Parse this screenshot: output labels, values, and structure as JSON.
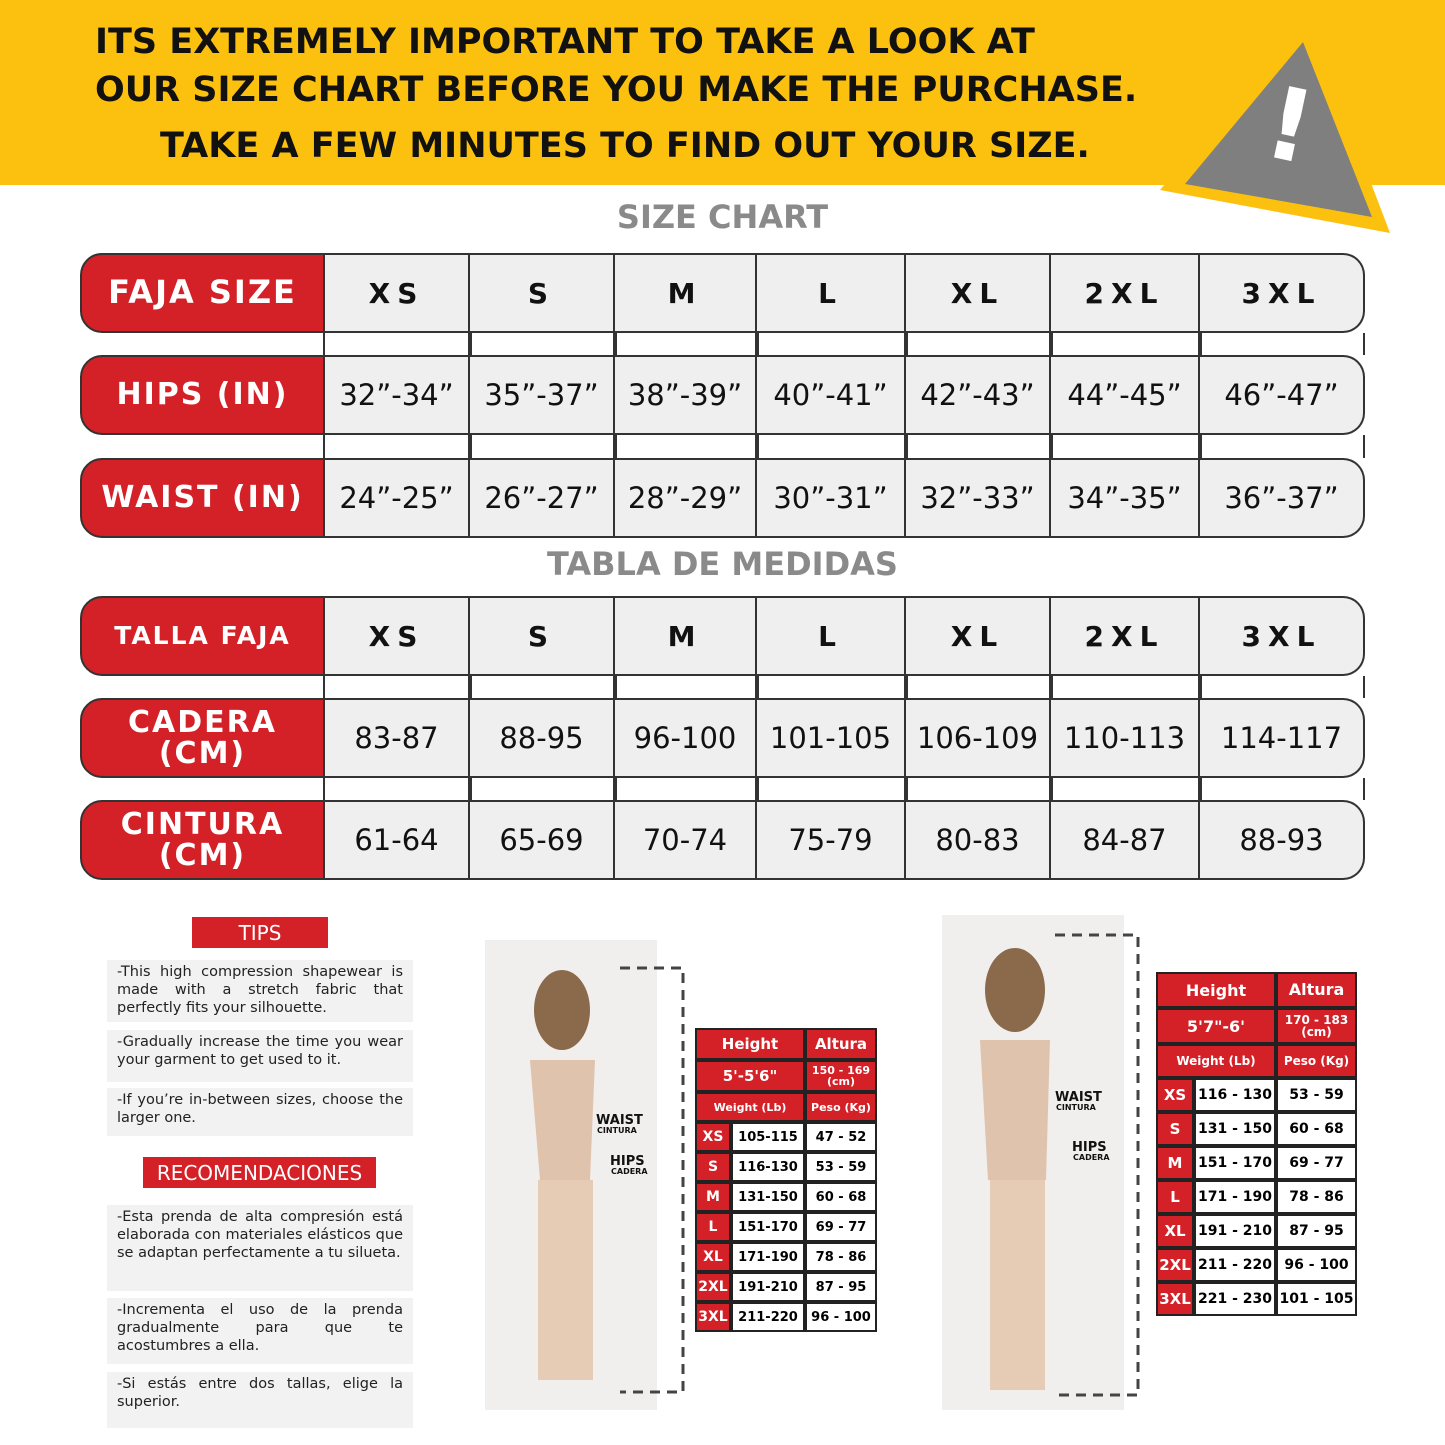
{
  "banner": {
    "lines": [
      "ITS EXTREMELY IMPORTANT TO TAKE A LOOK AT",
      "OUR SIZE CHART BEFORE YOU MAKE THE PURCHASE.",
      "TAKE A FEW MINUTES TO FIND OUT YOUR SIZE."
    ],
    "icon": "!"
  },
  "size_chart": {
    "title": "SIZE CHART",
    "rows": [
      {
        "label": "FAJA SIZE",
        "cells": [
          "XS",
          "S",
          "M",
          "L",
          "XL",
          "2XL",
          "3XL"
        ]
      },
      {
        "label": "HIPS (IN)",
        "cells": [
          "32”-34”",
          "35”-37”",
          "38”-39”",
          "40”-41”",
          "42”-43”",
          "44”-45”",
          "46”-47”"
        ]
      },
      {
        "label": "WAIST (IN)",
        "cells": [
          "24”-25”",
          "26”-27”",
          "28”-29”",
          "30”-31”",
          "32”-33”",
          "34”-35”",
          "36”-37”"
        ]
      }
    ]
  },
  "tabla": {
    "title": "TABLA DE MEDIDAS",
    "rows": [
      {
        "label": "TALLA FAJA",
        "cells": [
          "XS",
          "S",
          "M",
          "L",
          "XL",
          "2XL",
          "3XL"
        ]
      },
      {
        "label": "CADERA (CM)",
        "cells": [
          "83-87",
          "88-95",
          "96-100",
          "101-105",
          "106-109",
          "110-113",
          "114-117"
        ]
      },
      {
        "label": "CINTURA (CM)",
        "cells": [
          "61-64",
          "65-69",
          "70-74",
          "75-79",
          "80-83",
          "84-87",
          "88-93"
        ]
      }
    ]
  },
  "tips": {
    "title": "TIPS",
    "items": [
      "-This high compression shapewear is made with a stretch fabric that perfectly fits your silhouette.",
      "-Gradually increase the time you wear your garment to get used to it.",
      "-If you’re in-between sizes, choose the larger one."
    ]
  },
  "recomendaciones": {
    "title": "RECOMENDACIONES",
    "items": [
      "-Esta prenda de alta compresión está elaborada con materiales elásticos que se adaptan perfectamente a tu silueta.",
      "-Incrementa el uso de la prenda gradualmente para que te acostumbres a ella.",
      "-Si estás entre dos tallas, elige la superior."
    ]
  },
  "figure_left": {
    "labels": [
      {
        "main": "WAIST",
        "sub": "CINTURA"
      },
      {
        "main": "HIPS",
        "sub": "CADERA"
      }
    ]
  },
  "figure_right": {
    "labels": [
      {
        "main": "WAIST",
        "sub": "CINTURA"
      },
      {
        "main": "HIPS",
        "sub": "CADERA"
      }
    ]
  },
  "table_left": {
    "header": [
      "Height",
      "Altura"
    ],
    "height": [
      "5'-5'6\"",
      "150 - 169 (cm)"
    ],
    "subheader": [
      "Weight (Lb)",
      "Peso (Kg)"
    ],
    "rows": [
      [
        "XS",
        "105-115",
        "47 - 52"
      ],
      [
        "S",
        "116-130",
        "53 - 59"
      ],
      [
        "M",
        "131-150",
        "60 - 68"
      ],
      [
        "L",
        "151-170",
        "69 - 77"
      ],
      [
        "XL",
        "171-190",
        "78 - 86"
      ],
      [
        "2XL",
        "191-210",
        "87 - 95"
      ],
      [
        "3XL",
        "211-220",
        "96 - 100"
      ]
    ]
  },
  "table_right": {
    "header": [
      "Height",
      "Altura"
    ],
    "height": [
      "5'7\"-6'",
      "170 - 183 (cm)"
    ],
    "subheader": [
      "Weight (Lb)",
      "Peso (Kg)"
    ],
    "rows": [
      [
        "XS",
        "116 - 130",
        "53 - 59"
      ],
      [
        "S",
        "131 - 150",
        "60 - 68"
      ],
      [
        "M",
        "151 - 170",
        "69 - 77"
      ],
      [
        "L",
        "171 - 190",
        "78 - 86"
      ],
      [
        "XL",
        "191 - 210",
        "87 - 95"
      ],
      [
        "2XL",
        "211 - 220",
        "96 - 100"
      ],
      [
        "3XL",
        "221 - 230",
        "101 - 105"
      ]
    ]
  }
}
